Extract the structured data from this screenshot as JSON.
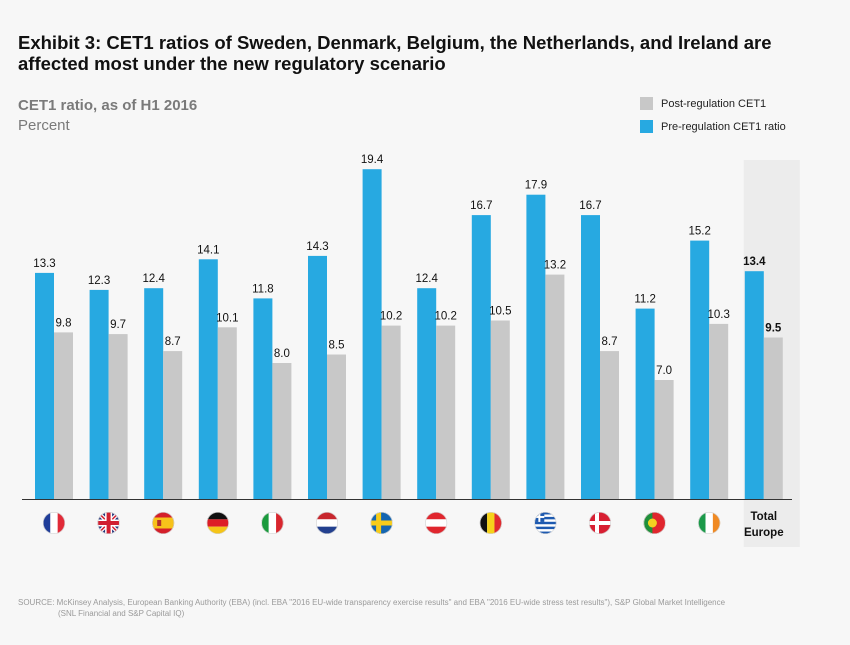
{
  "title": "Exhibit 3: CET1 ratios of Sweden, Denmark, Belgium, the Netherlands, and Ireland are affected most under the new regulatory scenario",
  "subtitle": "CET1 ratio, as of H1 2016",
  "unit": "Percent",
  "source_line1": "SOURCE: McKinsey Analysis, European Banking Authority (EBA) (incl. EBA \"2016 EU-wide transparency exercise results\" and EBA \"2016 EU-wide stress test results\"), S&P Global Market Intelligence",
  "source_line2": "(SNL Financial and S&P Capital IQ)",
  "colors": {
    "pre": "#27a9e1",
    "post": "#c8c8c8",
    "highlight": "#ececec"
  },
  "chart_data": {
    "type": "bar",
    "categories": [
      "france-flag",
      "uk-flag",
      "spain-flag",
      "germany-flag",
      "italy-flag",
      "netherlands-flag",
      "sweden-flag",
      "austria-flag",
      "belgium-flag",
      "greece-flag",
      "denmark-flag",
      "portugal-flag",
      "ireland-flag",
      "Total Europe"
    ],
    "series": [
      {
        "name": "Pre-regulation CET1 ratio",
        "values": [
          13.3,
          12.3,
          12.4,
          14.1,
          11.8,
          14.3,
          19.4,
          12.4,
          16.7,
          17.9,
          16.7,
          11.2,
          15.2,
          13.4
        ]
      },
      {
        "name": "Post-regulation CET1",
        "values": [
          9.8,
          9.7,
          8.7,
          10.1,
          8.0,
          8.5,
          10.2,
          10.2,
          10.5,
          13.2,
          8.7,
          7.0,
          10.3,
          9.5
        ]
      }
    ],
    "total_label": [
      "Total",
      "Europe"
    ],
    "ylim": [
      0,
      20
    ],
    "legend_position": "top-right",
    "grid": false
  }
}
